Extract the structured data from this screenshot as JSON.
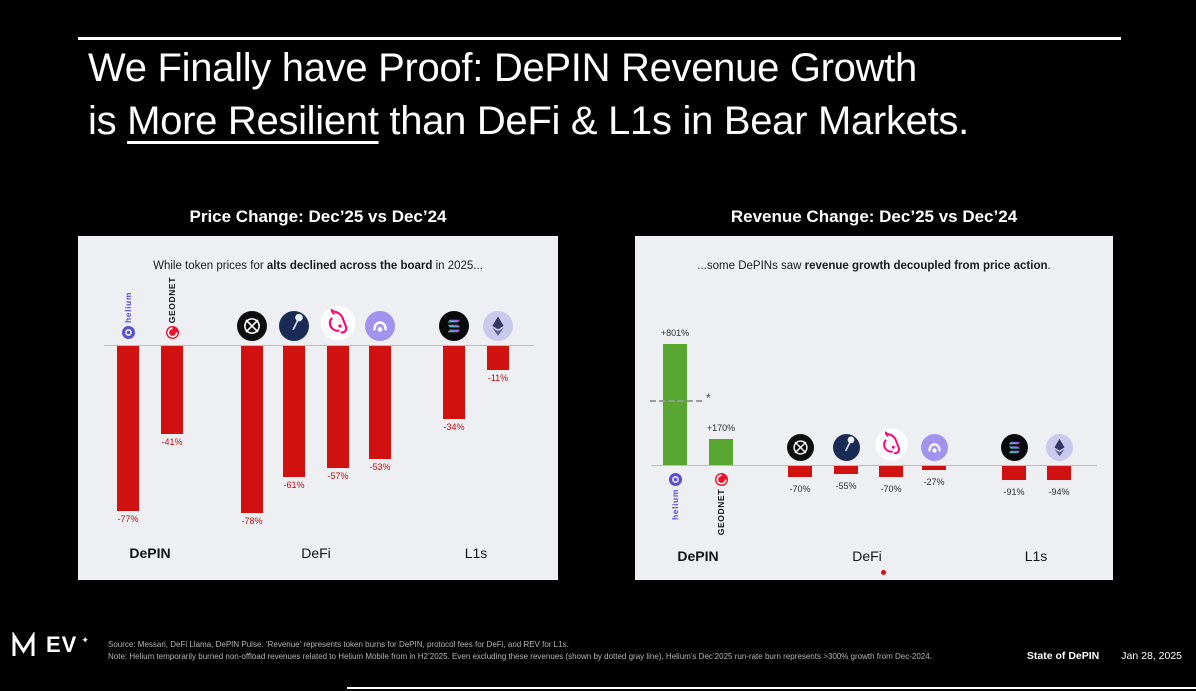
{
  "slide": {
    "title": {
      "line1": "We Finally have Proof: DePIN Revenue Growth",
      "line2_prefix": "is ",
      "line2_underline": "More Resilient",
      "line2_suffix": " than DeFi & L1s in Bear Markets."
    },
    "footer": {
      "logo_text": "EV",
      "logo_sup": "✦",
      "source_line": "Source: Messari, DeFi Llama, DePIN Pulse. ‘Revenue’ represents token burns for DePIN, protocol fees for DeFi, and REV for L1s.",
      "note_line": "Note: Helium temporarily burned non-offload revenues related to Helium Mobile from in H2’2025. Even excluding these revenues (shown by dotted gray line), Helium’s Dec’2025 run-rate burn represents >300% growth from Dec-2024.",
      "report_name": "State of DePIN",
      "date": "Jan 28, 2025"
    }
  },
  "chart_data": [
    {
      "id": "price-change",
      "type": "bar",
      "title": "Price Change: Dec’25 vs Dec’24",
      "subtitle_prefix": "While token prices for ",
      "subtitle_bold": "alts declined across the board",
      "subtitle_suffix": " in 2025...",
      "unit": "%",
      "axis": "hidden-baseline-at-0",
      "colors": {
        "negative": "#cf1110",
        "positive": "#58a733",
        "value_label": "#c00b0e"
      },
      "groups": [
        {
          "label": "DePIN",
          "emphasis": true,
          "bars": [
            {
              "name": "Helium",
              "icon": "helium",
              "logo_text": "helium",
              "value": -77,
              "label": "-77%"
            },
            {
              "name": "GEODNET",
              "icon": "geodnet",
              "logo_text": "GEODNET",
              "value": -41,
              "label": "-41%"
            }
          ]
        },
        {
          "label": "DeFi",
          "bars": [
            {
              "name": "DeFi protocol 1",
              "icon": "black-circle-x",
              "value": -78,
              "label": "-78%"
            },
            {
              "name": "DeFi protocol 2",
              "icon": "navy-gauge",
              "value": -61,
              "label": "-61%"
            },
            {
              "name": "Uniswap",
              "icon": "uniswap",
              "value": -57,
              "label": "-57%"
            },
            {
              "name": "DeFi protocol 4",
              "icon": "purple-round",
              "value": -53,
              "label": "-53%"
            }
          ]
        },
        {
          "label": "L1s",
          "bars": [
            {
              "name": "Solana",
              "icon": "solana",
              "value": -34,
              "label": "-34%"
            },
            {
              "name": "Ethereum",
              "icon": "ethereum",
              "value": -11,
              "label": "-11%"
            }
          ]
        }
      ]
    },
    {
      "id": "revenue-change",
      "type": "bar",
      "title": "Revenue Change: Dec’25 vs Dec’24",
      "subtitle_prefix": "...some DePINs saw ",
      "subtitle_bold": "revenue growth decoupled from price action",
      "subtitle_suffix": ".",
      "unit": "%",
      "axis": "hidden-baseline-at-0",
      "colors": {
        "negative": "#cf1110",
        "positive": "#58a733",
        "value_label": "#2d2d2d"
      },
      "annotation": {
        "type": "dashed-line",
        "label": "*",
        "value_estimate": 430
      },
      "defi_marker_dot": true,
      "groups": [
        {
          "label": "DePIN",
          "emphasis": true,
          "bars": [
            {
              "name": "Helium",
              "icon": "helium",
              "logo_text": "helium",
              "value": 801,
              "label": "+801%"
            },
            {
              "name": "GEODNET",
              "icon": "geodnet",
              "logo_text": "GEODNET",
              "value": 170,
              "label": "+170%"
            }
          ]
        },
        {
          "label": "DeFi",
          "bars": [
            {
              "name": "DeFi protocol 1",
              "icon": "black-circle-x",
              "value": -70,
              "label": "-70%"
            },
            {
              "name": "DeFi protocol 2",
              "icon": "navy-gauge",
              "value": -55,
              "label": "-55%"
            },
            {
              "name": "Uniswap",
              "icon": "uniswap",
              "value": -70,
              "label": "-70%"
            },
            {
              "name": "DeFi protocol 4",
              "icon": "purple-round",
              "value": -27,
              "label": "-27%"
            }
          ]
        },
        {
          "label": "L1s",
          "bars": [
            {
              "name": "Solana",
              "icon": "solana",
              "value": -91,
              "label": "-91%"
            },
            {
              "name": "Ethereum",
              "icon": "ethereum",
              "value": -94,
              "label": "-94%"
            }
          ]
        }
      ]
    }
  ]
}
